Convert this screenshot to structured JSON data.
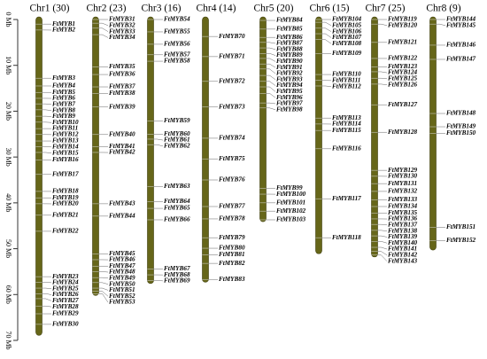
{
  "scale": {
    "min": 0,
    "max": 70,
    "ticks": [
      {
        "value": 0,
        "label": "0 Mb"
      },
      {
        "value": 10,
        "label": "10 Mb"
      },
      {
        "value": 20,
        "label": "20 Mb"
      },
      {
        "value": 30,
        "label": "30 Mb"
      },
      {
        "value": 40,
        "label": "40 Mb"
      },
      {
        "value": 50,
        "label": "50 Mb"
      },
      {
        "value": 60,
        "label": "60 Mb"
      },
      {
        "value": 70,
        "label": "70 Mb"
      }
    ]
  },
  "chromosomes": [
    {
      "name": "Chr1 (30)",
      "length": 68.9,
      "genes": [
        {
          "label": "FtMYB1",
          "pos": 1.0
        },
        {
          "label": "FtMYB2",
          "pos": 2.3
        },
        {
          "label": "FtMYB3",
          "pos": 12.8
        },
        {
          "label": "FtMYB4",
          "pos": 14.5
        },
        {
          "label": "FtMYB5",
          "pos": 15.9
        },
        {
          "label": "FtMYB6",
          "pos": 17.2
        },
        {
          "label": "FtMYB7",
          "pos": 18.4
        },
        {
          "label": "FtMYB8",
          "pos": 19.7
        },
        {
          "label": "FtMYB9",
          "pos": 21.1
        },
        {
          "label": "FtMYB10",
          "pos": 22.4
        },
        {
          "label": "FtMYB11",
          "pos": 23.8
        },
        {
          "label": "FtMYB12",
          "pos": 25.1
        },
        {
          "label": "FtMYB13",
          "pos": 26.5
        },
        {
          "label": "FtMYB14",
          "pos": 27.7
        },
        {
          "label": "FtMYB15",
          "pos": 29.0
        },
        {
          "label": "FtMYB16",
          "pos": 30.6
        },
        {
          "label": "FtMYB17",
          "pos": 33.8
        },
        {
          "label": "FtMYB18",
          "pos": 37.5
        },
        {
          "label": "FtMYB19",
          "pos": 38.9
        },
        {
          "label": "FtMYB20",
          "pos": 40.2
        },
        {
          "label": "FtMYB21",
          "pos": 42.7
        },
        {
          "label": "FtMYB22",
          "pos": 46.2
        },
        {
          "label": "FtMYB23",
          "pos": 56.1
        },
        {
          "label": "FtMYB24",
          "pos": 57.3
        },
        {
          "label": "FtMYB25",
          "pos": 58.6
        },
        {
          "label": "FtMYB26",
          "pos": 59.8
        },
        {
          "label": "FtMYB27",
          "pos": 60.9
        },
        {
          "label": "FtMYB28",
          "pos": 62.5
        },
        {
          "label": "FtMYB29",
          "pos": 64.2
        },
        {
          "label": "FtMYB30",
          "pos": 66.5
        }
      ]
    },
    {
      "name": "Chr2 (23)",
      "length": 60.2,
      "genes": [
        {
          "label": "FtMYB31",
          "pos": 0.0
        },
        {
          "label": "FtMYB32",
          "pos": 0.8
        },
        {
          "label": "FtMYB33",
          "pos": 1.9
        },
        {
          "label": "FtMYB34",
          "pos": 3.3
        },
        {
          "label": "FtMYB35",
          "pos": 10.3
        },
        {
          "label": "FtMYB36",
          "pos": 12.0
        },
        {
          "label": "FtMYB37",
          "pos": 14.7
        },
        {
          "label": "FtMYB38",
          "pos": 16.1
        },
        {
          "label": "FtMYB39",
          "pos": 19.1
        },
        {
          "label": "FtMYB40",
          "pos": 25.1
        },
        {
          "label": "FtMYB41",
          "pos": 27.7
        },
        {
          "label": "FtMYB42",
          "pos": 29.0
        },
        {
          "label": "FtMYB43",
          "pos": 40.2
        },
        {
          "label": "FtMYB44",
          "pos": 42.9
        },
        {
          "label": "FtMYB45",
          "pos": 51.1
        },
        {
          "label": "FtMYB46",
          "pos": 52.4
        },
        {
          "label": "FtMYB47",
          "pos": 53.8
        },
        {
          "label": "FtMYB48",
          "pos": 55.0
        },
        {
          "label": "FtMYB49",
          "pos": 56.3
        },
        {
          "label": "FtMYB50",
          "pos": 57.4
        },
        {
          "label": "FtMYB51",
          "pos": 58.6
        },
        {
          "label": "FtMYB52",
          "pos": 59.3
        },
        {
          "label": "FtMYB53",
          "pos": 59.8
        }
      ]
    },
    {
      "name": "Chr3 (16)",
      "length": 57.6,
      "genes": [
        {
          "label": "FtMYB54",
          "pos": 0.0
        },
        {
          "label": "FtMYB55",
          "pos": 2.7
        },
        {
          "label": "FtMYB56",
          "pos": 5.4
        },
        {
          "label": "FtMYB57",
          "pos": 7.7
        },
        {
          "label": "FtMYB58",
          "pos": 9.1
        },
        {
          "label": "FtMYB59",
          "pos": 22.1
        },
        {
          "label": "FtMYB60",
          "pos": 25.0
        },
        {
          "label": "FtMYB61",
          "pos": 26.1
        },
        {
          "label": "FtMYB62",
          "pos": 27.3
        },
        {
          "label": "FtMYB63",
          "pos": 36.4
        },
        {
          "label": "FtMYB64",
          "pos": 39.7
        },
        {
          "label": "FtMYB65",
          "pos": 41.2
        },
        {
          "label": "FtMYB66",
          "pos": 43.7
        },
        {
          "label": "FtMYB67",
          "pos": 54.4
        },
        {
          "label": "FtMYB68",
          "pos": 55.7
        },
        {
          "label": "FtMYB69",
          "pos": 56.9
        }
      ]
    },
    {
      "name": "Chr4 (14)",
      "length": 57.3,
      "genes": [
        {
          "label": "FtMYB70",
          "pos": 3.7
        },
        {
          "label": "FtMYB71",
          "pos": 8.1
        },
        {
          "label": "FtMYB72",
          "pos": 13.5
        },
        {
          "label": "FtMYB73",
          "pos": 19.1
        },
        {
          "label": "FtMYB74",
          "pos": 25.9
        },
        {
          "label": "FtMYB75",
          "pos": 30.4
        },
        {
          "label": "FtMYB76",
          "pos": 35.0
        },
        {
          "label": "FtMYB77",
          "pos": 40.8
        },
        {
          "label": "FtMYB78",
          "pos": 43.5
        },
        {
          "label": "FtMYB79",
          "pos": 47.6
        },
        {
          "label": "FtMYB80",
          "pos": 49.9
        },
        {
          "label": "FtMYB81",
          "pos": 51.3
        },
        {
          "label": "FtMYB82",
          "pos": 53.2
        },
        {
          "label": "FtMYB83",
          "pos": 56.7
        }
      ]
    },
    {
      "name": "Chr5 (20)",
      "length": 44.1,
      "genes": [
        {
          "label": "FtMYB84",
          "pos": 0.2
        },
        {
          "label": "FtMYB85",
          "pos": 2.1
        },
        {
          "label": "FtMYB86",
          "pos": 3.9
        },
        {
          "label": "FtMYB87",
          "pos": 5.0
        },
        {
          "label": "FtMYB88",
          "pos": 6.2
        },
        {
          "label": "FtMYB89",
          "pos": 7.4
        },
        {
          "label": "FtMYB90",
          "pos": 8.5
        },
        {
          "label": "FtMYB91",
          "pos": 9.7
        },
        {
          "label": "FtMYB92",
          "pos": 10.8
        },
        {
          "label": "FtMYB93",
          "pos": 12.2
        },
        {
          "label": "FtMYB94",
          "pos": 13.5
        },
        {
          "label": "FtMYB95",
          "pos": 14.7
        },
        {
          "label": "FtMYB96",
          "pos": 16.1
        },
        {
          "label": "FtMYB97",
          "pos": 18.2
        },
        {
          "label": "FtMYB98",
          "pos": 19.3
        },
        {
          "label": "FtMYB99",
          "pos": 36.8
        },
        {
          "label": "FtMYB100",
          "pos": 38.1
        },
        {
          "label": "FtMYB101",
          "pos": 40.0
        },
        {
          "label": "FtMYB102",
          "pos": 41.8
        },
        {
          "label": "FtMYB103",
          "pos": 43.7
        }
      ]
    },
    {
      "name": "Chr6 (15)",
      "length": 51.1,
      "genes": [
        {
          "label": "FtMYB104",
          "pos": 0.0
        },
        {
          "label": "FtMYB105",
          "pos": 0.6
        },
        {
          "label": "FtMYB106",
          "pos": 1.9
        },
        {
          "label": "FtMYB107",
          "pos": 3.1
        },
        {
          "label": "FtMYB108",
          "pos": 4.4
        },
        {
          "label": "FtMYB109",
          "pos": 7.4
        },
        {
          "label": "FtMYB110",
          "pos": 12.0
        },
        {
          "label": "FtMYB111",
          "pos": 13.3
        },
        {
          "label": "FtMYB112",
          "pos": 14.5
        },
        {
          "label": "FtMYB113",
          "pos": 21.5
        },
        {
          "label": "FtMYB114",
          "pos": 22.8
        },
        {
          "label": "FtMYB115",
          "pos": 24.2
        },
        {
          "label": "FtMYB116",
          "pos": 28.2
        },
        {
          "label": "FtMYB117",
          "pos": 39.1
        },
        {
          "label": "FtMYB118",
          "pos": 47.6
        }
      ]
    },
    {
      "name": "Chr7 (25)",
      "length": 51.8,
      "genes": [
        {
          "label": "FtMYB119",
          "pos": 0.0
        },
        {
          "label": "FtMYB120",
          "pos": 1.0
        },
        {
          "label": "FtMYB121",
          "pos": 5.0
        },
        {
          "label": "FtMYB122",
          "pos": 8.5
        },
        {
          "label": "FtMYB123",
          "pos": 10.3
        },
        {
          "label": "FtMYB124",
          "pos": 11.4
        },
        {
          "label": "FtMYB125",
          "pos": 12.8
        },
        {
          "label": "FtMYB126",
          "pos": 14.1
        },
        {
          "label": "FtMYB127",
          "pos": 18.6
        },
        {
          "label": "FtMYB128",
          "pos": 24.6
        },
        {
          "label": "FtMYB129",
          "pos": 32.9
        },
        {
          "label": "FtMYB130",
          "pos": 34.2
        },
        {
          "label": "FtMYB131",
          "pos": 35.8
        },
        {
          "label": "FtMYB132",
          "pos": 37.5
        },
        {
          "label": "FtMYB133",
          "pos": 39.3
        },
        {
          "label": "FtMYB134",
          "pos": 40.8
        },
        {
          "label": "FtMYB135",
          "pos": 42.2
        },
        {
          "label": "FtMYB136",
          "pos": 43.5
        },
        {
          "label": "FtMYB137",
          "pos": 44.7
        },
        {
          "label": "FtMYB138",
          "pos": 46.0
        },
        {
          "label": "FtMYB139",
          "pos": 47.2
        },
        {
          "label": "FtMYB140",
          "pos": 48.4
        },
        {
          "label": "FtMYB141",
          "pos": 49.7
        },
        {
          "label": "FtMYB142",
          "pos": 50.6
        },
        {
          "label": "FtMYB143",
          "pos": 51.4
        }
      ]
    },
    {
      "name": "Chr8 (9)",
      "length": 50.3,
      "genes": [
        {
          "label": "FtMYB144",
          "pos": 0.0
        },
        {
          "label": "FtMYB145",
          "pos": 1.0
        },
        {
          "label": "FtMYB146",
          "pos": 5.6
        },
        {
          "label": "FtMYB147",
          "pos": 8.7
        },
        {
          "label": "FtMYB148",
          "pos": 20.5
        },
        {
          "label": "FtMYB149",
          "pos": 23.4
        },
        {
          "label": "FtMYB150",
          "pos": 24.8
        },
        {
          "label": "FtMYB151",
          "pos": 45.3
        },
        {
          "label": "FtMYB152",
          "pos": 48.2
        }
      ]
    }
  ]
}
